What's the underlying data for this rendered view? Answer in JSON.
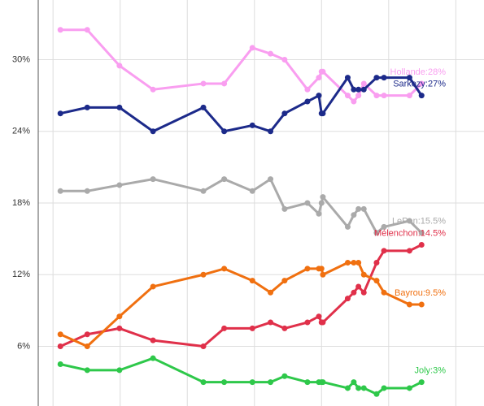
{
  "chart_data": {
    "type": "line",
    "x": [
      1.1,
      5.1,
      9.9,
      14.9,
      22.4,
      25.5,
      29.7,
      32.4,
      34.5,
      37.9,
      39.6,
      40,
      40.2,
      43.9,
      44.8,
      45.5,
      46.3,
      48.2,
      49.3,
      53.1,
      54.9
    ],
    "xlim": [
      -2.2,
      64.2
    ],
    "xticks": [
      0,
      10,
      20,
      30,
      40,
      50,
      60
    ],
    "ylim": [
      1,
      35
    ],
    "yticks": [
      {
        "value": 6,
        "label": "6%"
      },
      {
        "value": 12,
        "label": "12%"
      },
      {
        "value": 18,
        "label": "18%"
      },
      {
        "value": 24,
        "label": "24%"
      },
      {
        "value": 30,
        "label": "30%"
      }
    ],
    "grid": true,
    "series": [
      {
        "name": "Hollande:28%",
        "color": "#f99ef0",
        "values": [
          32.5,
          32.5,
          29.5,
          27.5,
          28,
          28,
          31,
          30.5,
          30,
          27.5,
          28.5,
          29,
          29,
          27,
          26.5,
          27,
          28,
          27,
          27,
          27,
          28
        ]
      },
      {
        "name": "Sarkozy:27%",
        "color": "#1c2a8a",
        "values": [
          25.5,
          26,
          26,
          24,
          26,
          24,
          24.5,
          24,
          25.5,
          26.5,
          27,
          25.5,
          25.5,
          28.5,
          27.5,
          27.5,
          27.5,
          28.5,
          28.5,
          28.5,
          27
        ]
      },
      {
        "name": "LePen:15.5%",
        "color": "#aaaaaa",
        "values": [
          19,
          19,
          19.5,
          20,
          19,
          20,
          19,
          20,
          17.5,
          18,
          17.1,
          18,
          18.5,
          16,
          17,
          17.5,
          17.5,
          15.5,
          16,
          16.5,
          15.5
        ]
      },
      {
        "name": "Mélenchon:14.5%",
        "color": "#e0304a",
        "values": [
          6,
          7,
          7.5,
          6.5,
          6,
          7.5,
          7.5,
          8,
          7.5,
          8,
          8.5,
          8,
          8,
          10,
          10.5,
          11,
          10.5,
          13,
          14,
          14,
          14.5
        ]
      },
      {
        "name": "Bayrou:9.5%",
        "color": "#f07010",
        "values": [
          7,
          6,
          8.5,
          11,
          12,
          12.5,
          11.5,
          10.5,
          11.5,
          12.5,
          12.5,
          12.5,
          12,
          13,
          13,
          13,
          12,
          11.5,
          10.5,
          9.5,
          9.5
        ]
      },
      {
        "name": "Joly:3%",
        "color": "#2ec84a",
        "values": [
          4.5,
          4,
          4,
          5,
          3,
          3,
          3,
          3,
          3.5,
          3,
          3,
          3,
          3,
          2.5,
          3,
          2.5,
          2.5,
          2,
          2.5,
          2.5,
          3
        ]
      }
    ]
  }
}
